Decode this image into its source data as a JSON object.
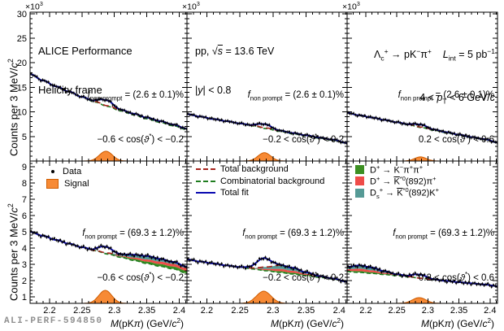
{
  "figure": {
    "watermark": "ALI-PERF-594850",
    "colors": {
      "frame": "#000000",
      "marker": "#000000",
      "fit": "#0909b0",
      "totbg": "#a6231c",
      "comb": "#1f7d1f",
      "signal": "#f78a35",
      "signal_edge": "#ce5c00",
      "d_green": "#3c8f22",
      "d_red": "#ef4c49",
      "d_teal": "#569a96",
      "watermark": "#8f8f8f"
    },
    "labels": {
      "exponent": "×10^{3}",
      "ylabel": "Counts per 3 MeV/**c**^{2}",
      "xlabel": "**M**(pK**π**) (GeV/**c**^{2})"
    },
    "annotations": {
      "alice1": "ALICE Performance",
      "alice2": "Helicity frame",
      "pp": "pp, √~**s**~ = 13.6 TeV",
      "rapidity": "|**y**| < 0.8",
      "lc_decay": "Λ_{c}^{+} → pK^{−}π^{+}    **L**_{int} = 5 pb^{−1}",
      "pt_range": "4 < **p**_{T} < 6 GeV/**c**",
      "fnp_prompt": "**f**_{non prompt} = (2.6 ± 0.1)%",
      "fnp_nonprompt": "**f**_{non prompt} = (69.3 ± 1.2)%",
      "cos_bin1": "−0.6 < cos(**ϑ**^{*}) < −0.2",
      "cos_bin2": "−0.2 < cos(**ϑ**^{*}) < 0.2",
      "cos_bin3": "0.2 < cos(**ϑ**^{*}) < 0.6"
    },
    "legends": {
      "data": "Data",
      "signal": "Signal",
      "totbg": "Total background",
      "comb": "Combinatorial background",
      "fit": "Total fit",
      "d1": "D^{+} → K^{−}π^{+}π^{+}",
      "d2": "D^{+} → ~K~^{*0}(892)π^{+}",
      "d3": "D_{s}^{+} → ~K~^{*0}(892)K^{+}"
    }
  },
  "chart_data": {
    "type": "line",
    "title": "ALICE Performance, Lc+ -> pK-pi+ invariant-mass fits, helicity frame",
    "xlabel": "M(pKpi) (GeV/c2)",
    "ylabel": "Counts per 3 MeV/c2 (x10^3)",
    "x_range": [
      2.17,
      2.412
    ],
    "x_label_ticks": [
      2.2,
      2.25,
      2.3,
      2.35,
      2.4
    ],
    "marker_step": 0.003,
    "jitter": [
      0.4,
      -0.6,
      0.15,
      0.9,
      -0.25,
      -1,
      0.5,
      0.05,
      -0.45,
      0.7,
      -0.8,
      0.25,
      1,
      -0.15,
      -0.7,
      0.6,
      -0.35,
      0.8,
      -0.9,
      0.1,
      0.45,
      -0.55,
      0.2,
      -0.3
    ],
    "jitter_scale": [
      0.2,
      0.09
    ],
    "cols": [
      {
        "x0": 37,
        "x1": 230
      },
      {
        "x0": 230,
        "x1": 427
      },
      {
        "x0": 427,
        "x1": 612
      }
    ],
    "rows": [
      {
        "y0": 15,
        "y1": 198,
        "vmin": 0,
        "vmax": 30.3,
        "major": 5,
        "minor": 1,
        "label_ticks": [
          5,
          10,
          15,
          20,
          25,
          30
        ]
      },
      {
        "y0": 198,
        "y1": 373,
        "vmin": 0.6,
        "vmax": 9.35,
        "major": 1,
        "minor": 0.2,
        "label_ticks": [
          1,
          2,
          3,
          4,
          5,
          6,
          7,
          8,
          9
        ]
      }
    ],
    "mass_keys": [
      2.17,
      2.19,
      2.21,
      2.23,
      2.25,
      2.27,
      2.29,
      2.31,
      2.33,
      2.35,
      2.37,
      2.39,
      2.412
    ],
    "panels": [
      {
        "row": 0,
        "col": 0,
        "fnp": "(2.6 ± 0.1)%",
        "cos_bin": "-0.6 < cos(th*) < -0.2",
        "comb": [
          17.7,
          16.4,
          15.2,
          14.1,
          13.0,
          12.0,
          11.1,
          10.2,
          9.4,
          8.6,
          7.9,
          7.2,
          6.4
        ],
        "bgdiff": [
          0,
          0,
          0,
          0.03,
          0.06,
          0.1,
          0.15,
          0.2,
          0.23,
          0.25,
          0.25,
          0.23,
          0.2
        ],
        "signal": {
          "mu": 2.287,
          "sigma": 0.01,
          "amp_fit": 1.1,
          "amp_draw": 2.0
        }
      },
      {
        "row": 0,
        "col": 1,
        "fnp": "(2.6 ± 0.1)%",
        "cos_bin": "-0.2 < cos(th*) < 0.2",
        "comb": [
          9.55,
          9.05,
          8.55,
          8.1,
          7.6,
          7.15,
          6.6,
          6.05,
          5.55,
          5.1,
          4.65,
          4.25,
          3.6
        ],
        "bgdiff": [
          0,
          0,
          0,
          0.02,
          0.05,
          0.08,
          0.12,
          0.14,
          0.15,
          0.14,
          0.12,
          0.1,
          0.07
        ],
        "signal": {
          "mu": 2.287,
          "sigma": 0.0095,
          "amp_fit": 0.75,
          "amp_draw": 1.7
        }
      },
      {
        "row": 0,
        "col": 2,
        "fnp": "(2.6 ± 0.1)%",
        "cos_bin": "0.2 < cos(th*) < 0.6",
        "comb": [
          9.8,
          9.3,
          8.85,
          8.35,
          7.85,
          7.35,
          6.8,
          6.25,
          5.75,
          5.25,
          4.8,
          4.4,
          3.75
        ],
        "bgdiff": [
          0,
          0,
          0,
          0.02,
          0.04,
          0.07,
          0.1,
          0.12,
          0.12,
          0.11,
          0.09,
          0.07,
          0.05
        ],
        "signal": {
          "mu": 2.288,
          "sigma": 0.0095,
          "amp_fit": 0.5,
          "amp_draw": 0.85
        }
      },
      {
        "row": 1,
        "col": 0,
        "fnp": "(69.3 ± 1.2)%",
        "cos_bin": "-0.6 < cos(th*) < -0.2",
        "comb": [
          5.0,
          4.75,
          4.5,
          4.27,
          4.05,
          3.84,
          3.63,
          3.43,
          3.24,
          3.05,
          2.88,
          2.72,
          2.45
        ],
        "bands": {
          "green": [
            0,
            0,
            0,
            0,
            0,
            0,
            0.02,
            0.05,
            0.09,
            0.12,
            0.14,
            0.15,
            0.16
          ],
          "red": [
            0,
            0,
            0,
            0,
            0,
            0,
            0.01,
            0.04,
            0.09,
            0.13,
            0.15,
            0.16,
            0.16
          ],
          "teal": [
            0,
            0,
            0,
            0,
            0,
            0.01,
            0.03,
            0.09,
            0.17,
            0.21,
            0.17,
            0.12,
            0.09
          ]
        },
        "signal": {
          "mu": 2.286,
          "sigma": 0.01,
          "amp_fit": 0.38,
          "amp_draw": 0.8
        }
      },
      {
        "row": 1,
        "col": 1,
        "fnp": "(69.3 ± 1.2)%",
        "cos_bin": "-0.2 < cos(th*) < 0.2",
        "comb": [
          3.3,
          3.17,
          3.05,
          2.93,
          2.82,
          2.71,
          2.6,
          2.5,
          2.4,
          2.3,
          2.2,
          2.1,
          1.93
        ],
        "bands": {
          "green": [
            0,
            0,
            0,
            0,
            0,
            0.01,
            0.04,
            0.08,
            0.08,
            0.05,
            0.02,
            0.01,
            0
          ],
          "red": [
            0,
            0,
            0,
            0,
            0,
            0.02,
            0.08,
            0.14,
            0.12,
            0.07,
            0.03,
            0.01,
            0
          ],
          "teal": [
            0,
            0,
            0,
            0,
            0.01,
            0.03,
            0.12,
            0.22,
            0.19,
            0.09,
            0.03,
            0.01,
            0
          ]
        },
        "signal": {
          "mu": 2.286,
          "sigma": 0.011,
          "amp_fit": 0.55,
          "amp_draw": 0.75
        }
      },
      {
        "row": 1,
        "col": 2,
        "fnp": "(69.3 ± 1.2)%",
        "cos_bin": "0.2 < cos(th*) < 0.6",
        "comb": [
          2.55,
          2.5,
          2.44,
          2.37,
          2.3,
          2.22,
          2.14,
          2.06,
          1.98,
          1.9,
          1.83,
          1.76,
          1.66
        ],
        "bands": {
          "green": [
            0.05,
            0.08,
            0.07,
            0.04,
            0.02,
            0,
            0,
            0,
            0,
            0,
            0,
            0,
            0
          ],
          "red": [
            0.1,
            0.15,
            0.12,
            0.07,
            0.03,
            0.01,
            0,
            0,
            0,
            0,
            0,
            0,
            0
          ],
          "teal": [
            0.14,
            0.2,
            0.17,
            0.1,
            0.04,
            0.01,
            0,
            0,
            0,
            0,
            0,
            0,
            0
          ]
        },
        "signal": {
          "mu": 2.286,
          "sigma": 0.011,
          "amp_fit": 0.22,
          "amp_draw": 0.35
        }
      }
    ]
  }
}
